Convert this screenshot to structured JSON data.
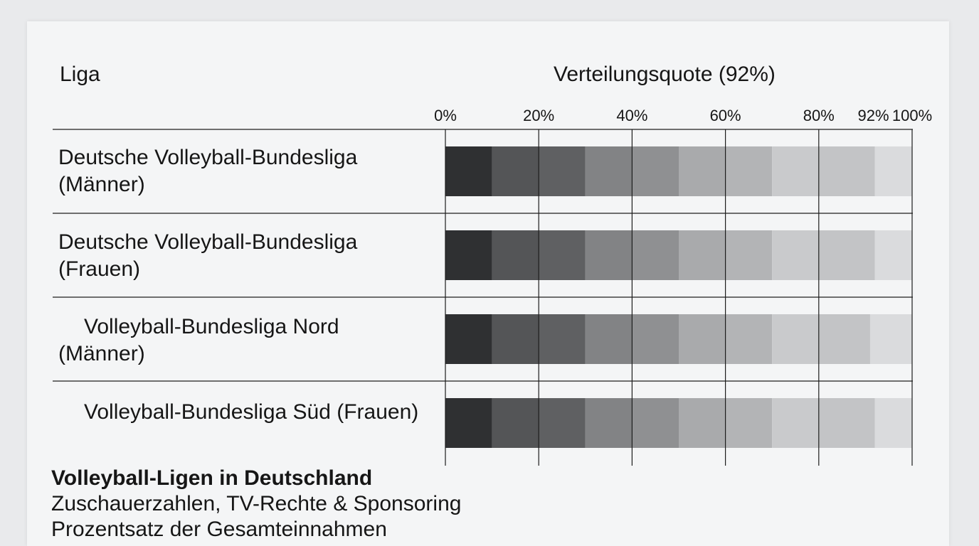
{
  "header": {
    "column_label": "Liga",
    "chart_heading": "Verteilungsquote (92%)"
  },
  "rows": [
    {
      "line1": "Deutsche Volleyball-Bundesliga",
      "line2": "(Männer)"
    },
    {
      "line1": "Deutsche Volleyball-Bundesliga",
      "line2": "(Frauen)"
    },
    {
      "line1": "Volleyball-Bundesliga Nord",
      "line2": "(Männer)"
    },
    {
      "line1": "Volleyball-Bundesliga Süd (Frauen)",
      "line2": ""
    }
  ],
  "caption": {
    "title": "Volleyball-Ligen in Deutschland",
    "subtitle": "Zuschauerzahlen, TV-Rechte & Sponsoring",
    "note": "Prozentsatz der Gesamteinnahmen"
  },
  "chart_data": {
    "type": "bar",
    "orientation": "horizontal",
    "stacked": true,
    "categories": [
      "Deutsche Volleyball-Bundesliga (Männer)",
      "Deutsche Volleyball-Bundesliga (Frauen)",
      "Volleyball-Bundesliga Nord (Männer)",
      "Volleyball-Bundesliga Süd (Frauen)"
    ],
    "segments": [
      [
        10,
        20,
        30,
        40,
        50,
        60,
        70,
        80,
        92,
        100
      ],
      [
        10,
        20,
        30,
        40,
        50,
        60,
        70,
        80,
        92,
        100
      ],
      [
        10,
        20,
        30,
        40,
        50,
        60,
        70,
        80,
        91,
        100
      ],
      [
        10,
        20,
        30,
        40,
        50,
        60,
        70,
        80,
        92,
        100
      ]
    ],
    "segment_colors": [
      "#2f3032",
      "#545557",
      "#5f6062",
      "#828385",
      "#8f9092",
      "#a9aaac",
      "#b3b4b6",
      "#c9cacc",
      "#c3c4c6",
      "#dadbdd"
    ],
    "x_ticks": [
      "0%",
      "20%",
      "40%",
      "60%",
      "80%",
      "92%",
      "100%"
    ],
    "x_tick_values": [
      0,
      20,
      40,
      60,
      80,
      92,
      100
    ],
    "xlim": [
      0,
      100
    ],
    "grid": true
  }
}
